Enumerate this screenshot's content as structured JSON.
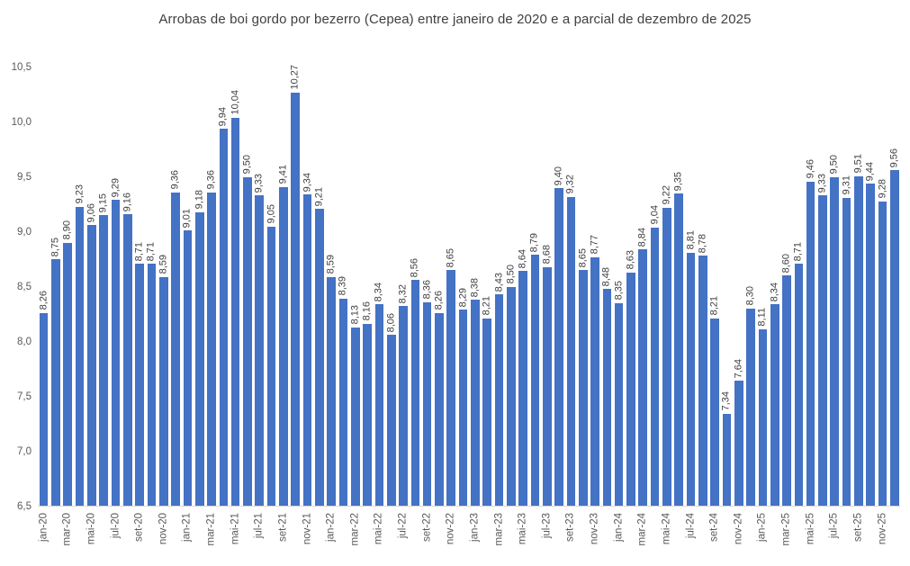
{
  "chart_data": {
    "type": "bar",
    "title": "Arrobas de boi gordo por bezerro (Cepea) entre janeiro de 2020 e a parcial de dezembro de 2025",
    "bar_color": "#4472C4",
    "label_color": "#404040",
    "axis_label_color": "#595959",
    "grid": false,
    "legend": false,
    "ylim": [
      6.5,
      10.5
    ],
    "y_tick_labels": [
      "6,5",
      "7,0",
      "7,5",
      "8,0",
      "8,5",
      "9,0",
      "9,5",
      "10,0",
      "10,5"
    ],
    "y_tick_values": [
      6.5,
      7.0,
      7.5,
      8.0,
      8.5,
      9.0,
      9.5,
      10.0,
      10.5
    ],
    "x_tick_labels": [
      "jan-20",
      "mar-20",
      "mai-20",
      "jul-20",
      "set-20",
      "nov-20",
      "jan-21",
      "mar-21",
      "mai-21",
      "jul-21",
      "set-21",
      "nov-21",
      "jan-22",
      "mar-22",
      "mai-22",
      "jul-22",
      "set-22",
      "nov-22",
      "jan-23",
      "mar-23",
      "mai-23",
      "jul-23",
      "set-23",
      "nov-23",
      "jan-24",
      "mar-24",
      "mai-24",
      "jul-24",
      "set-24",
      "nov-24",
      "jan-25",
      "mar-25",
      "mai-25",
      "jul-25",
      "set-25",
      "nov-25"
    ],
    "x_tick_interval": 2,
    "categories": [
      "jan-20",
      "fev-20",
      "mar-20",
      "abr-20",
      "mai-20",
      "jun-20",
      "jul-20",
      "ago-20",
      "set-20",
      "out-20",
      "nov-20",
      "dez-20",
      "jan-21",
      "fev-21",
      "mar-21",
      "abr-21",
      "mai-21",
      "jun-21",
      "jul-21",
      "ago-21",
      "set-21",
      "out-21",
      "nov-21",
      "dez-21",
      "jan-22",
      "fev-22",
      "mar-22",
      "abr-22",
      "mai-22",
      "jun-22",
      "jul-22",
      "ago-22",
      "set-22",
      "out-22",
      "nov-22",
      "dez-22",
      "jan-23",
      "fev-23",
      "mar-23",
      "abr-23",
      "mai-23",
      "jun-23",
      "jul-23",
      "ago-23",
      "set-23",
      "out-23",
      "nov-23",
      "dez-23",
      "jan-24",
      "fev-24",
      "mar-24",
      "abr-24",
      "mai-24",
      "jun-24",
      "jul-24",
      "ago-24",
      "set-24",
      "out-24",
      "nov-24",
      "dez-24",
      "jan-25",
      "fev-25",
      "mar-25",
      "abr-25",
      "mai-25",
      "jun-25",
      "jul-25",
      "ago-25",
      "set-25",
      "out-25",
      "nov-25",
      "dez-25"
    ],
    "values": [
      8.26,
      8.75,
      8.9,
      9.23,
      9.06,
      9.15,
      9.29,
      9.16,
      8.71,
      8.71,
      8.59,
      9.36,
      9.01,
      9.18,
      9.36,
      9.94,
      10.04,
      9.5,
      9.33,
      9.05,
      9.41,
      10.27,
      9.34,
      9.21,
      8.59,
      8.39,
      8.13,
      8.16,
      8.34,
      8.06,
      8.32,
      8.56,
      8.36,
      8.26,
      8.65,
      8.29,
      8.38,
      8.21,
      8.43,
      8.5,
      8.64,
      8.79,
      8.68,
      9.4,
      9.32,
      8.65,
      8.77,
      8.48,
      8.35,
      8.63,
      8.84,
      9.04,
      9.22,
      9.35,
      8.81,
      8.78,
      8.21,
      7.34,
      7.64,
      8.3,
      8.11,
      8.34,
      8.6,
      8.71,
      9.46,
      9.33,
      9.5,
      9.31,
      9.51,
      9.44,
      9.28,
      9.56
    ],
    "value_labels": [
      "8,26",
      "8,75",
      "8,90",
      "9,23",
      "9,06",
      "9,15",
      "9,29",
      "9,16",
      "8,71",
      "8,71",
      "8,59",
      "9,36",
      "9,01",
      "9,18",
      "9,36",
      "9,94",
      "10,04",
      "9,50",
      "9,33",
      "9,05",
      "9,41",
      "10,27",
      "9,34",
      "9,21",
      "8,59",
      "8,39",
      "8,13",
      "8,16",
      "8,34",
      "8,06",
      "8,32",
      "8,56",
      "8,36",
      "8,26",
      "8,65",
      "8,29",
      "8,38",
      "8,21",
      "8,43",
      "8,50",
      "8,64",
      "8,79",
      "8,68",
      "9,40",
      "9,32",
      "8,65",
      "8,77",
      "8,48",
      "8,35",
      "8,63",
      "8,84",
      "9,04",
      "9,22",
      "9,35",
      "8,81",
      "8,78",
      "8,21",
      "7,34",
      "7,64",
      "8,30",
      "8,11",
      "8,34",
      "8,60",
      "8,71",
      "9,46",
      "9,33",
      "9,50",
      "9,31",
      "9,51",
      "9,44",
      "9,28",
      "9,56"
    ]
  }
}
